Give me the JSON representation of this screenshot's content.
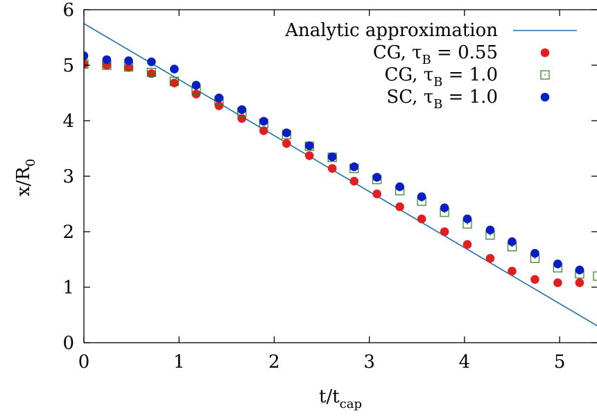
{
  "chart_data": {
    "type": "scatter",
    "xlabel": {
      "main": "t/t",
      "sub": "cap"
    },
    "ylabel": {
      "main": "x/R",
      "sub": "0"
    },
    "xlim": [
      0,
      5.4
    ],
    "ylim": [
      0,
      6
    ],
    "xticks": [
      "0",
      "1",
      "2",
      "3",
      "4",
      "5"
    ],
    "yticks": [
      "0",
      "1",
      "2",
      "3",
      "4",
      "5",
      "6"
    ],
    "grid": false,
    "legend_position": "top-right",
    "colors": {
      "line": "#1f6fa8",
      "red": "#e02020",
      "green": "#2e7d1e",
      "blue": "#0a1fc2"
    },
    "series": [
      {
        "name": {
          "main": "Analytic approximation",
          "sub": "",
          "tail": ""
        },
        "kind": "line",
        "x": [
          0,
          5.4
        ],
        "y": [
          5.75,
          0.3
        ]
      },
      {
        "name": {
          "main": "CG, τ",
          "sub": "B",
          "tail": " = 0.55"
        },
        "kind": "filled-circle",
        "x": [
          0,
          0.24,
          0.47,
          0.71,
          0.95,
          1.18,
          1.42,
          1.66,
          1.89,
          2.13,
          2.37,
          2.61,
          2.84,
          3.08,
          3.32,
          3.55,
          3.79,
          4.03,
          4.27,
          4.5,
          4.74,
          4.98,
          5.21
        ],
        "y": [
          5.02,
          5.0,
          4.96,
          4.85,
          4.68,
          4.48,
          4.27,
          4.04,
          3.82,
          3.59,
          3.37,
          3.14,
          2.91,
          2.68,
          2.45,
          2.23,
          2.0,
          1.77,
          1.52,
          1.29,
          1.14,
          1.08,
          1.08
        ]
      },
      {
        "name": {
          "main": "CG, τ",
          "sub": "B",
          "tail": " = 1.0"
        },
        "kind": "open-square",
        "x": [
          0,
          0.24,
          0.47,
          0.71,
          0.95,
          1.18,
          1.42,
          1.66,
          1.89,
          2.13,
          2.37,
          2.61,
          2.84,
          3.08,
          3.32,
          3.55,
          3.79,
          4.03,
          4.27,
          4.5,
          4.74,
          4.98,
          5.21,
          5.4
        ],
        "y": [
          5.02,
          5.0,
          4.97,
          4.87,
          4.71,
          4.55,
          4.36,
          4.15,
          3.95,
          3.75,
          3.54,
          3.34,
          3.14,
          2.94,
          2.74,
          2.55,
          2.35,
          2.14,
          1.94,
          1.73,
          1.52,
          1.35,
          1.24,
          1.2
        ]
      },
      {
        "name": {
          "main": "SC, τ",
          "sub": "B",
          "tail": " = 1.0"
        },
        "kind": "filled-circle",
        "x": [
          0,
          0.24,
          0.47,
          0.71,
          0.95,
          1.18,
          1.42,
          1.66,
          1.89,
          2.13,
          2.37,
          2.61,
          2.84,
          3.08,
          3.32,
          3.55,
          3.79,
          4.03,
          4.27,
          4.5,
          4.74,
          4.98,
          5.21
        ],
        "y": [
          5.17,
          5.1,
          5.08,
          5.06,
          4.93,
          4.64,
          4.41,
          4.2,
          3.99,
          3.78,
          3.55,
          3.35,
          3.17,
          2.98,
          2.81,
          2.63,
          2.43,
          2.23,
          2.03,
          1.82,
          1.61,
          1.42,
          1.31
        ]
      }
    ]
  }
}
